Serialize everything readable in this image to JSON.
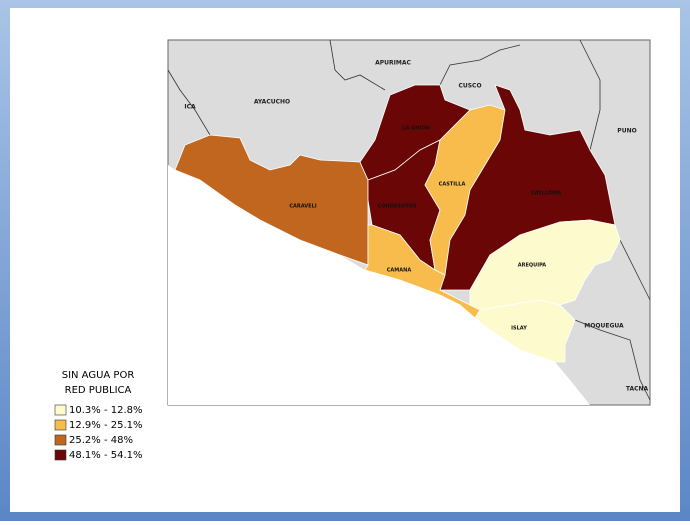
{
  "legend": {
    "title_lines": [
      "SIN AGUA POR",
      "RED PUBLICA"
    ],
    "items": [
      {
        "label": "10.3% - 12.8%",
        "color": "#fdfacd"
      },
      {
        "label": "12.9% - 25.1%",
        "color": "#f8bc4c"
      },
      {
        "label": "25.2% - 48%",
        "color": "#c0661e"
      },
      {
        "label": "48.1% - 54.1%",
        "color": "#6b0606"
      }
    ]
  },
  "neighbors": [
    "APURIMAC",
    "CUSCO",
    "ICA",
    "AYACUCHO",
    "PUNO",
    "MOQUEGUA",
    "TACNA"
  ],
  "provinces": [
    {
      "label": "CARAVELI",
      "color": "#c0661e"
    },
    {
      "label": "LA UNION",
      "color": "#6b0606"
    },
    {
      "label": "CONDESUYOS",
      "color": "#6b0606"
    },
    {
      "label": "CASTILLA",
      "color": "#f8bc4c"
    },
    {
      "label": "CAYLLOMA",
      "color": "#6b0606"
    },
    {
      "label": "CAMANA",
      "color": "#f8bc4c"
    },
    {
      "label": "AREQUIPA",
      "color": "#fdfacd"
    },
    {
      "label": "ISLAY",
      "color": "#fdfacd"
    }
  ]
}
